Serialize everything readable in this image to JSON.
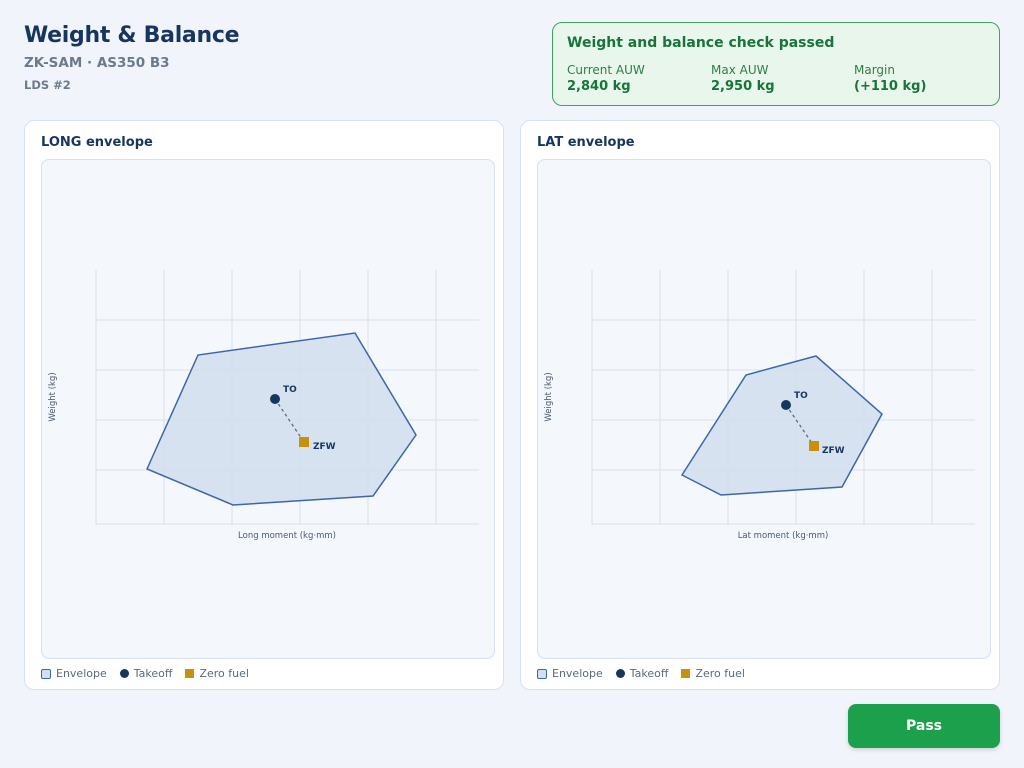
{
  "header": {
    "title": "Weight & Balance",
    "subtitle": "ZK-SAM · AS350 B3",
    "lds": "LDS #2"
  },
  "status": {
    "message": "Weight and balance check passed",
    "stats": [
      {
        "label": "Current AUW",
        "value": "2,840 kg"
      },
      {
        "label": "Max AUW",
        "value": "2,950 kg"
      },
      {
        "label": "Margin",
        "value": "(+110 kg)"
      }
    ],
    "color": "#17743a"
  },
  "panels": [
    {
      "title": "LONG envelope",
      "xlabel": "Long moment (kg·mm)",
      "ylabel": "Weight (kg)"
    },
    {
      "title": "LAT envelope",
      "xlabel": "Lat moment (kg·mm)",
      "ylabel": "Weight (kg)"
    }
  ],
  "legend": {
    "envelope": "Envelope",
    "takeoff": "Takeoff",
    "zero_fuel": "Zero fuel"
  },
  "points": {
    "takeoff_label": "TO",
    "zero_fuel_label": "ZFW"
  },
  "actions": {
    "pass_label": "Pass"
  },
  "colors": {
    "envelope_fill": "#d3dfee",
    "envelope_stroke": "#3c67ab",
    "takeoff": "#17365f",
    "zero_fuel": "#c8900c",
    "pass_button": "#1ca04b"
  }
}
